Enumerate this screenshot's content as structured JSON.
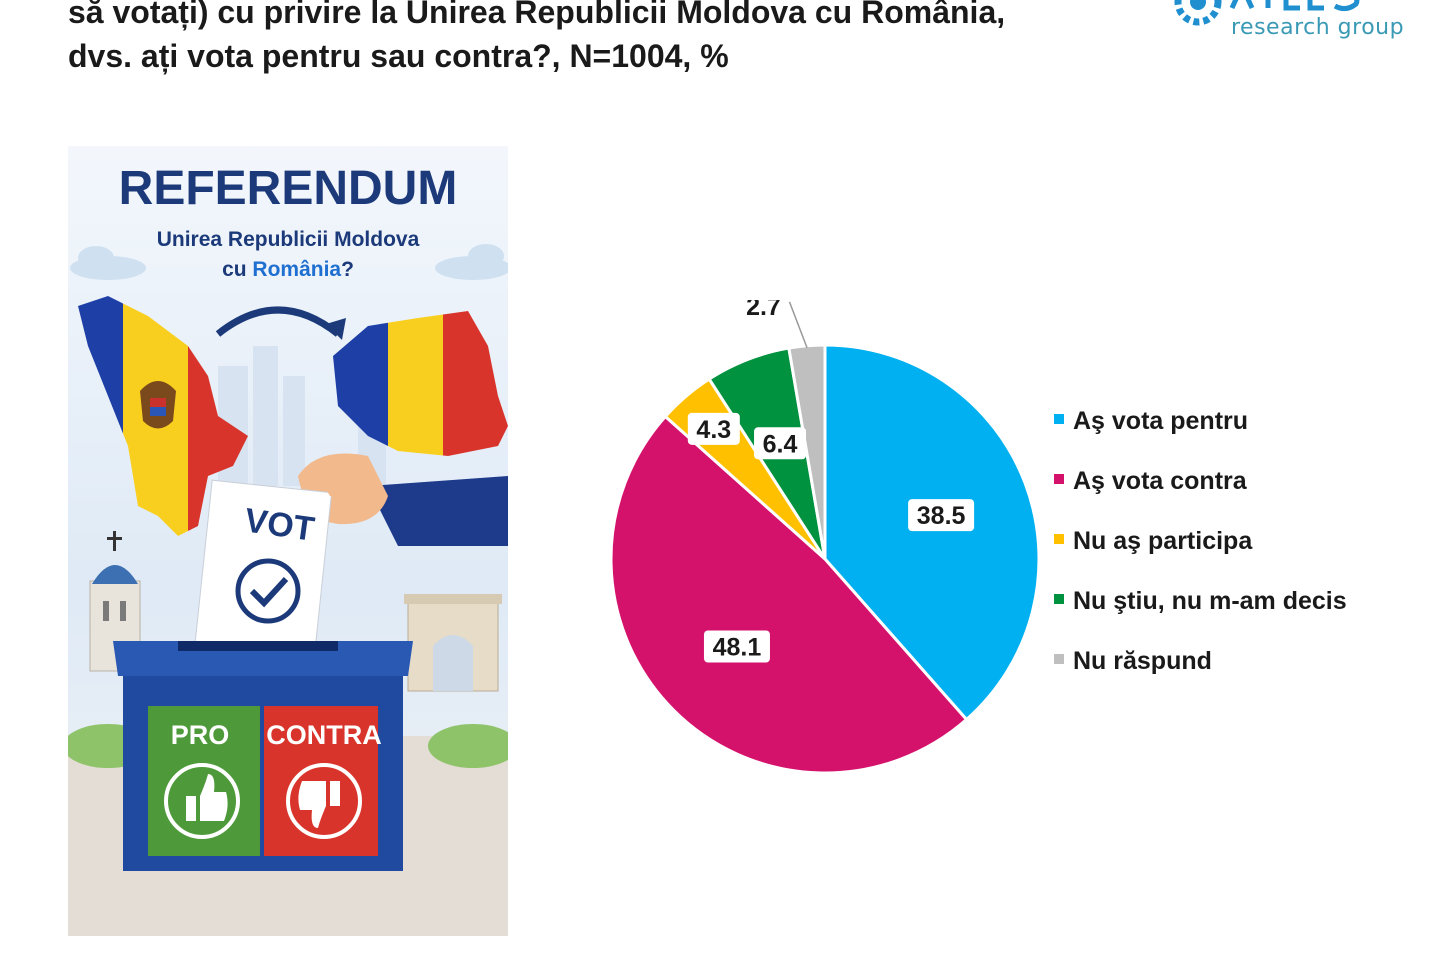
{
  "header": {
    "title_line1": "să votați) cu privire la Unirea Republicii Moldova cu România,",
    "title_line2": "dvs. ați vota pentru sau contra?, N=1004, %",
    "logo_tagline": "research group"
  },
  "poster": {
    "heading": "REFERENDUM",
    "question_line1": "Unirea Republicii Moldova",
    "question_line2_prefix": "cu ",
    "question_line2_country": "România",
    "question_line2_suffix": "?",
    "ballot_label": "VOT",
    "pro_label": "PRO",
    "contra_label": "CONTRA"
  },
  "chart_data": {
    "type": "pie",
    "title": "",
    "start_angle_deg": 0,
    "direction": "clockwise",
    "legend_position": "right",
    "slices": [
      {
        "label": "Aş vota pentru",
        "value": 38.5,
        "display": "38.5",
        "color": "#00b0f0"
      },
      {
        "label": "Aş vota contra",
        "value": 48.1,
        "display": "48.1",
        "color": "#d5126b"
      },
      {
        "label": "Nu aş participa",
        "value": 4.3,
        "display": "4.3",
        "color": "#ffc000"
      },
      {
        "label": "Nu ştiu, nu m-am decis",
        "value": 6.4,
        "display": "6.4",
        "color": "#00923f"
      },
      {
        "label": "Nu răspund",
        "value": 2.7,
        "display": "2.7",
        "color": "#bfbfbf"
      }
    ]
  }
}
